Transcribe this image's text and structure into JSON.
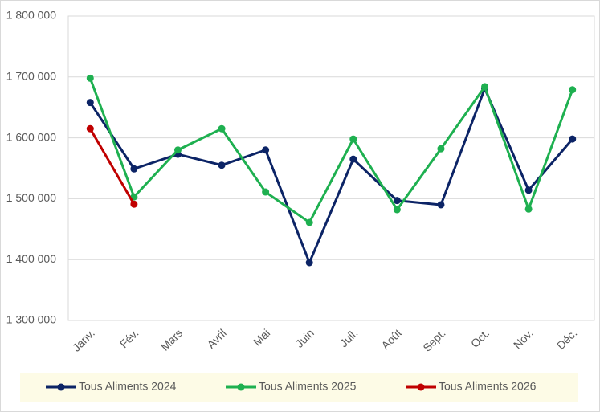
{
  "chart_data": {
    "type": "line",
    "categories": [
      "Janv.",
      "Fév.",
      "Mars",
      "Avril",
      "Mai",
      "Juin",
      "Juil.",
      "Août",
      "Sept.",
      "Oct.",
      "Nov.",
      "Déc."
    ],
    "series": [
      {
        "name": "Tous Aliments 2024",
        "color": "#0c2466",
        "values": [
          1658000,
          1549000,
          1573000,
          1555000,
          1580000,
          1395000,
          1565000,
          1497000,
          1490000,
          1681000,
          1514000,
          1598000
        ]
      },
      {
        "name": "Tous Aliments 2025",
        "color": "#1eb050",
        "values": [
          1698000,
          1503000,
          1580000,
          1615000,
          1511000,
          1461000,
          1598000,
          1482000,
          1582000,
          1684000,
          1483000,
          1679000
        ]
      },
      {
        "name": "Tous Aliments 2026",
        "color": "#c00000",
        "values": [
          1615000,
          1491000,
          null,
          null,
          null,
          null,
          null,
          null,
          null,
          null,
          null,
          null
        ]
      }
    ],
    "ylim": [
      1300000,
      1800000
    ],
    "yticks": [
      {
        "value": 1300000,
        "label": "1 300 000"
      },
      {
        "value": 1400000,
        "label": "1 400 000"
      },
      {
        "value": 1500000,
        "label": "1 500 000"
      },
      {
        "value": 1600000,
        "label": "1 600 000"
      },
      {
        "value": 1700000,
        "label": "1 700 000"
      },
      {
        "value": 1800000,
        "label": "1 800 000"
      }
    ],
    "grid": true,
    "legend": "bottom"
  }
}
